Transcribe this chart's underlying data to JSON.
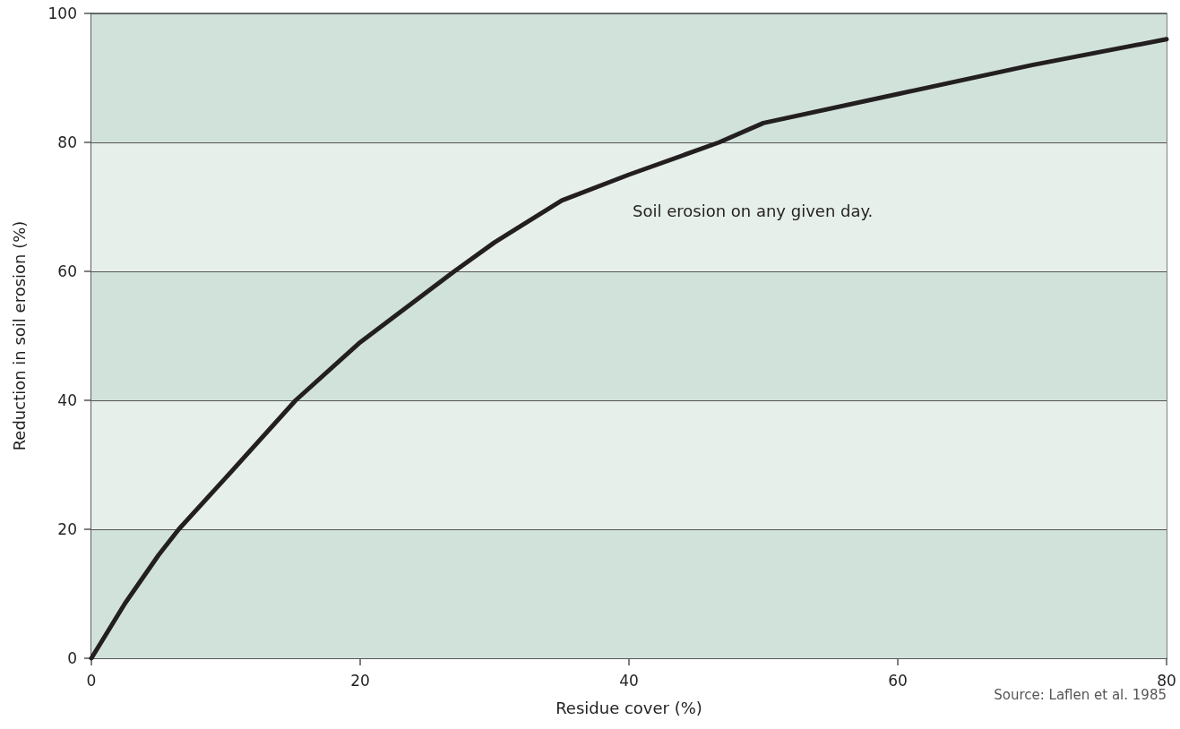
{
  "chart_data": {
    "type": "line",
    "xlabel": "Residue cover (%)",
    "ylabel": "Reduction in soil erosion (%)",
    "annotations": [
      "Soil erosion on any given day.",
      "Source: Laflen et al. 1985"
    ],
    "series": [
      {
        "color": "#231f20",
        "x": [
          0,
          2.5,
          5,
          6.5,
          10,
          15.2,
          20,
          27,
          30,
          35,
          40,
          46.7,
          50,
          60,
          70,
          80
        ],
        "values": [
          0,
          8.5,
          16,
          20,
          28,
          40,
          49,
          60,
          64.5,
          71,
          75,
          80,
          83,
          87.5,
          92,
          96
        ]
      }
    ],
    "xlim": [
      0,
      80
    ],
    "xticks": [
      0,
      20,
      40,
      60,
      80
    ],
    "ylim": [
      0,
      100
    ],
    "yticks": [
      0,
      20,
      40,
      60,
      80,
      100
    ],
    "grid": "y",
    "marker": "none",
    "line_style": "solid",
    "bands": [
      {
        "axis": "y",
        "from": 0,
        "to": 20,
        "color": "#d1e2da"
      },
      {
        "axis": "y",
        "from": 20,
        "to": 40,
        "color": "#e6efea"
      },
      {
        "axis": "y",
        "from": 40,
        "to": 60,
        "color": "#d1e2da"
      },
      {
        "axis": "y",
        "from": 60,
        "to": 80,
        "color": "#e6efea"
      },
      {
        "axis": "y",
        "from": 80,
        "to": 100,
        "color": "#d1e2da"
      }
    ]
  }
}
